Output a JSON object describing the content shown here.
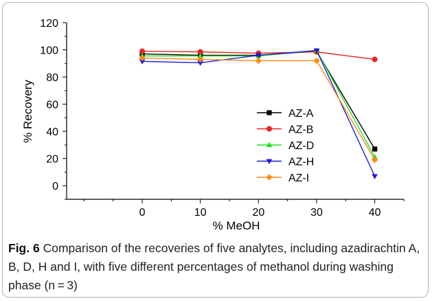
{
  "chart_data": {
    "type": "line",
    "xlabel": "% MeOH",
    "ylabel": "% Recovery",
    "x": [
      0,
      10,
      20,
      30,
      40
    ],
    "xlim": [
      -13,
      45
    ],
    "ylim": [
      -10,
      120
    ],
    "yticks": [
      0,
      20,
      40,
      60,
      80,
      100,
      120
    ],
    "grid": false,
    "legend_position": "center-right",
    "series": [
      {
        "name": "AZ-A",
        "color": "#000000",
        "marker": "square",
        "values": [
          97,
          96,
          96,
          99,
          27
        ]
      },
      {
        "name": "AZ-B",
        "color": "#e8231f",
        "marker": "circle",
        "values": [
          99,
          98.5,
          97.5,
          98.5,
          93
        ]
      },
      {
        "name": "AZ-D",
        "color": "#22dd22",
        "marker": "triangle-up",
        "values": [
          95.5,
          95.5,
          95.5,
          99.5,
          21
        ]
      },
      {
        "name": "AZ-H",
        "color": "#1a1ae0",
        "marker": "triangle-down",
        "values": [
          91.5,
          90.5,
          96,
          99.5,
          7
        ]
      },
      {
        "name": "AZ-I",
        "color": "#ff8a12",
        "marker": "diamond",
        "values": [
          94,
          93,
          92,
          92,
          19
        ]
      }
    ]
  },
  "caption": {
    "label": "Fig. 6",
    "text": "Comparison of the recoveries of five analytes, including azadirachtin A, B, D, H and I, with five different percentages of methanol during washing phase (n = 3)"
  }
}
